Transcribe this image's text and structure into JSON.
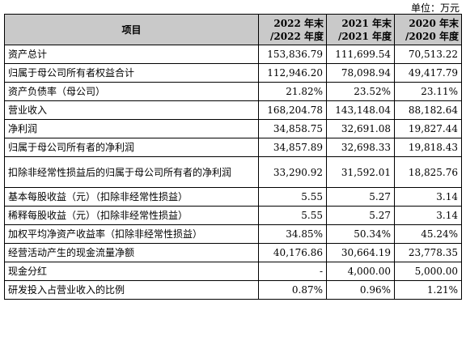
{
  "unit_label": "单位：万元",
  "header": {
    "item": "项目",
    "years": [
      {
        "line1": "2022 年末",
        "line2": "/2022 年度"
      },
      {
        "line1": "2021 年末",
        "line2": "/2021 年度"
      },
      {
        "line1": "2020 年末",
        "line2": "/2020 年度"
      }
    ]
  },
  "rows": [
    {
      "label": "资产总计",
      "v": [
        "153,836.79",
        "111,699.54",
        "70,513.22"
      ]
    },
    {
      "label": "归属于母公司所有者权益合计",
      "v": [
        "112,946.20",
        "78,098.94",
        "49,417.79"
      ]
    },
    {
      "label": "资产负债率（母公司）",
      "v": [
        "21.82%",
        "23.52%",
        "23.11%"
      ]
    },
    {
      "label": "营业收入",
      "v": [
        "168,204.78",
        "143,148.04",
        "88,182.64"
      ]
    },
    {
      "label": "净利润",
      "v": [
        "34,858.75",
        "32,691.08",
        "19,827.44"
      ]
    },
    {
      "label": "归属于母公司所有者的净利润",
      "v": [
        "34,857.89",
        "32,698.33",
        "19,818.43"
      ]
    },
    {
      "label": "扣除非经常性损益后的归属于母公司所有者的净利润",
      "v": [
        "33,290.92",
        "31,592.01",
        "18,825.76"
      ]
    },
    {
      "label": "基本每股收益（元）（扣除非经常性损益）",
      "v": [
        "5.55",
        "5.27",
        "3.14"
      ]
    },
    {
      "label": "稀释每股收益（元）（扣除非经常性损益）",
      "v": [
        "5.55",
        "5.27",
        "3.14"
      ]
    },
    {
      "label": "加权平均净资产收益率（扣除非经常性损益）",
      "v": [
        "34.85%",
        "50.34%",
        "45.24%"
      ]
    },
    {
      "label": "经营活动产生的现金流量净额",
      "v": [
        "40,176.86",
        "30,664.19",
        "23,778.35"
      ]
    },
    {
      "label": "现金分红",
      "v": [
        "-",
        "4,000.00",
        "5,000.00"
      ]
    },
    {
      "label": "研发投入占营业收入的比例",
      "v": [
        "0.87%",
        "0.96%",
        "1.21%"
      ]
    }
  ]
}
